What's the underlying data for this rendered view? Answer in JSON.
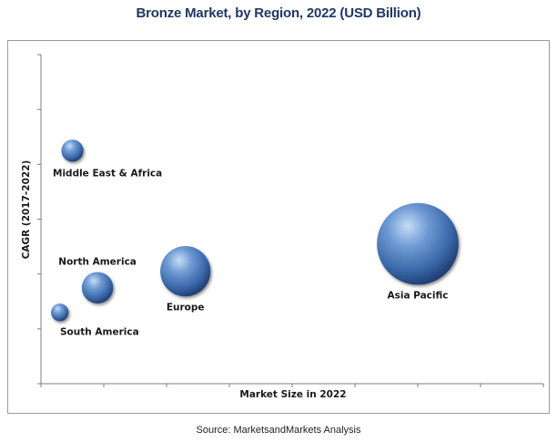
{
  "title": "Bronze Market, by Region, 2022 (USD Billion)",
  "source": "Source: MarketsandMarkets Analysis",
  "chart_data": {
    "type": "bubble",
    "title": "Bronze Market, by Region, 2022 (USD Billion)",
    "xlabel": "Market Size in 2022",
    "ylabel": "CAGR (2017-2022)",
    "x_ticks": 8,
    "y_ticks": 6,
    "xlim": [
      0,
      8
    ],
    "ylim": [
      0,
      6
    ],
    "axis_tick_labels_shown": false,
    "grid": false,
    "colors": {
      "bubble": "#3f6fb0",
      "bubble_highlight": "#b9d3f2",
      "axis": "#7f7f7f"
    },
    "series": [
      {
        "name": "Middle East & Africa",
        "x": 0.5,
        "y": 4.25,
        "size": 0.35
      },
      {
        "name": "North America",
        "x": 0.9,
        "y": 1.75,
        "size": 0.5
      },
      {
        "name": "South America",
        "x": 0.3,
        "y": 1.3,
        "size": 0.28
      },
      {
        "name": "Europe",
        "x": 2.3,
        "y": 2.05,
        "size": 0.8
      },
      {
        "name": "Asia Pacific",
        "x": 6.0,
        "y": 2.55,
        "size": 1.3
      }
    ]
  }
}
